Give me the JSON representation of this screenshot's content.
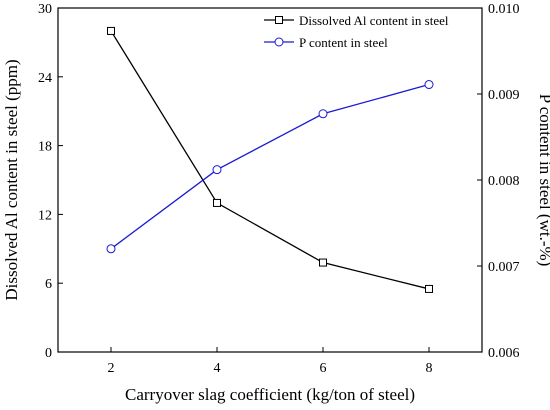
{
  "chart_data": {
    "type": "line",
    "title": "",
    "xlabel": "Carryover slag coefficient (kg/ton of steel)",
    "ylabel": "Dissolved Al content in steel (ppm)",
    "y2label": "P content in steel (wt.-%)",
    "x": [
      2,
      4,
      6,
      8
    ],
    "xlim": [
      1,
      9
    ],
    "xticks": [
      "2",
      "4",
      "6",
      "8"
    ],
    "ylim": [
      0,
      30
    ],
    "yticks": [
      "0",
      "6",
      "12",
      "18",
      "24",
      "30"
    ],
    "y2lim": [
      0.006,
      0.01
    ],
    "y2ticks": [
      "0.006",
      "0.007",
      "0.008",
      "0.009",
      "0.010"
    ],
    "grid": false,
    "legend_position": "top-right",
    "series": [
      {
        "name": "Dissolved Al content in steel",
        "axis": "left",
        "marker": "square",
        "color": "#000000",
        "values": [
          28.0,
          13.0,
          7.8,
          5.5
        ]
      },
      {
        "name": "P content in steel",
        "axis": "right",
        "marker": "circle",
        "color": "#1a1ad6",
        "values": [
          0.0072,
          0.00812,
          0.00877,
          0.00911
        ]
      }
    ]
  }
}
